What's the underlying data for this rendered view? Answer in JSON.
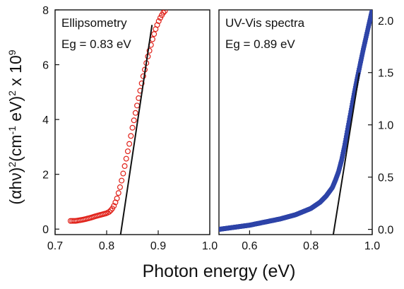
{
  "figure": {
    "ylabel_parts": [
      "(αhν)",
      "2",
      "(cm",
      "-1",
      " eV)",
      "2",
      " x 10",
      "9"
    ],
    "xlabel": "Photon energy (eV)"
  },
  "chart_data": [
    {
      "type": "scatter",
      "panel": "left",
      "annotation_line1": "Ellipsometry",
      "annotation_line2": "Eg = 0.83 eV",
      "xlim": [
        0.7,
        1.0
      ],
      "ylim": [
        -0.2,
        8.0
      ],
      "xticks": [
        0.7,
        0.8,
        0.9,
        1.0
      ],
      "xtick_labels": [
        "0.7",
        "0.8",
        "0.9",
        "1.0"
      ],
      "yticks": [
        0,
        2,
        4,
        6,
        8
      ],
      "ytick_labels": [
        "0",
        "2",
        "4",
        "6",
        "8"
      ],
      "y_axis_side": "left",
      "marker": "open-circle",
      "series": [
        {
          "color": "#e02018",
          "x": [
            0.73,
            0.74,
            0.75,
            0.76,
            0.77,
            0.78,
            0.79,
            0.8,
            0.805,
            0.81,
            0.815,
            0.82,
            0.825,
            0.83,
            0.835,
            0.84,
            0.845,
            0.85,
            0.855,
            0.86,
            0.865,
            0.87,
            0.875,
            0.88,
            0.885,
            0.89,
            0.895,
            0.9,
            0.905,
            0.91,
            0.915
          ],
          "y": [
            0.3,
            0.3,
            0.33,
            0.37,
            0.42,
            0.48,
            0.53,
            0.58,
            0.63,
            0.72,
            0.88,
            1.12,
            1.45,
            1.85,
            2.3,
            2.75,
            3.2,
            3.7,
            4.15,
            4.6,
            5.05,
            5.5,
            5.9,
            6.3,
            6.65,
            7.0,
            7.3,
            7.55,
            7.75,
            7.9,
            8.0
          ]
        }
      ],
      "fit_line": {
        "x": [
          0.827,
          0.888
        ],
        "y": [
          -0.2,
          7.45
        ],
        "color": "#111111"
      }
    },
    {
      "type": "scatter",
      "panel": "right",
      "annotation_line1": "UV-Vis spectra",
      "annotation_line2": "Eg = 0.89 eV",
      "xlim": [
        0.5,
        1.0
      ],
      "ylim": [
        -0.05,
        2.1
      ],
      "xticks": [
        0.6,
        0.8,
        1.0
      ],
      "xtick_labels": [
        "0.6",
        "0.8",
        "1.0"
      ],
      "yticks": [
        0.0,
        0.5,
        1.0,
        1.5,
        2.0
      ],
      "ytick_labels": [
        "0.0",
        "0.5",
        "1.0",
        "1.5",
        "2.0"
      ],
      "y_axis_side": "right",
      "marker": "dense-points",
      "series": [
        {
          "color": "#2e44a8",
          "x": [
            0.5,
            0.55,
            0.6,
            0.65,
            0.7,
            0.75,
            0.8,
            0.83,
            0.85,
            0.87,
            0.88,
            0.89,
            0.9,
            0.91,
            0.92,
            0.93,
            0.94,
            0.95,
            0.96,
            0.97,
            0.98,
            0.99,
            1.0
          ],
          "y": [
            0.0,
            0.02,
            0.04,
            0.07,
            0.1,
            0.14,
            0.2,
            0.26,
            0.32,
            0.4,
            0.47,
            0.55,
            0.66,
            0.8,
            0.96,
            1.12,
            1.28,
            1.43,
            1.57,
            1.71,
            1.84,
            1.97,
            2.1
          ]
        }
      ],
      "fit_line": {
        "x": [
          0.873,
          0.958
        ],
        "y": [
          -0.05,
          1.5
        ],
        "color": "#111111"
      }
    }
  ]
}
